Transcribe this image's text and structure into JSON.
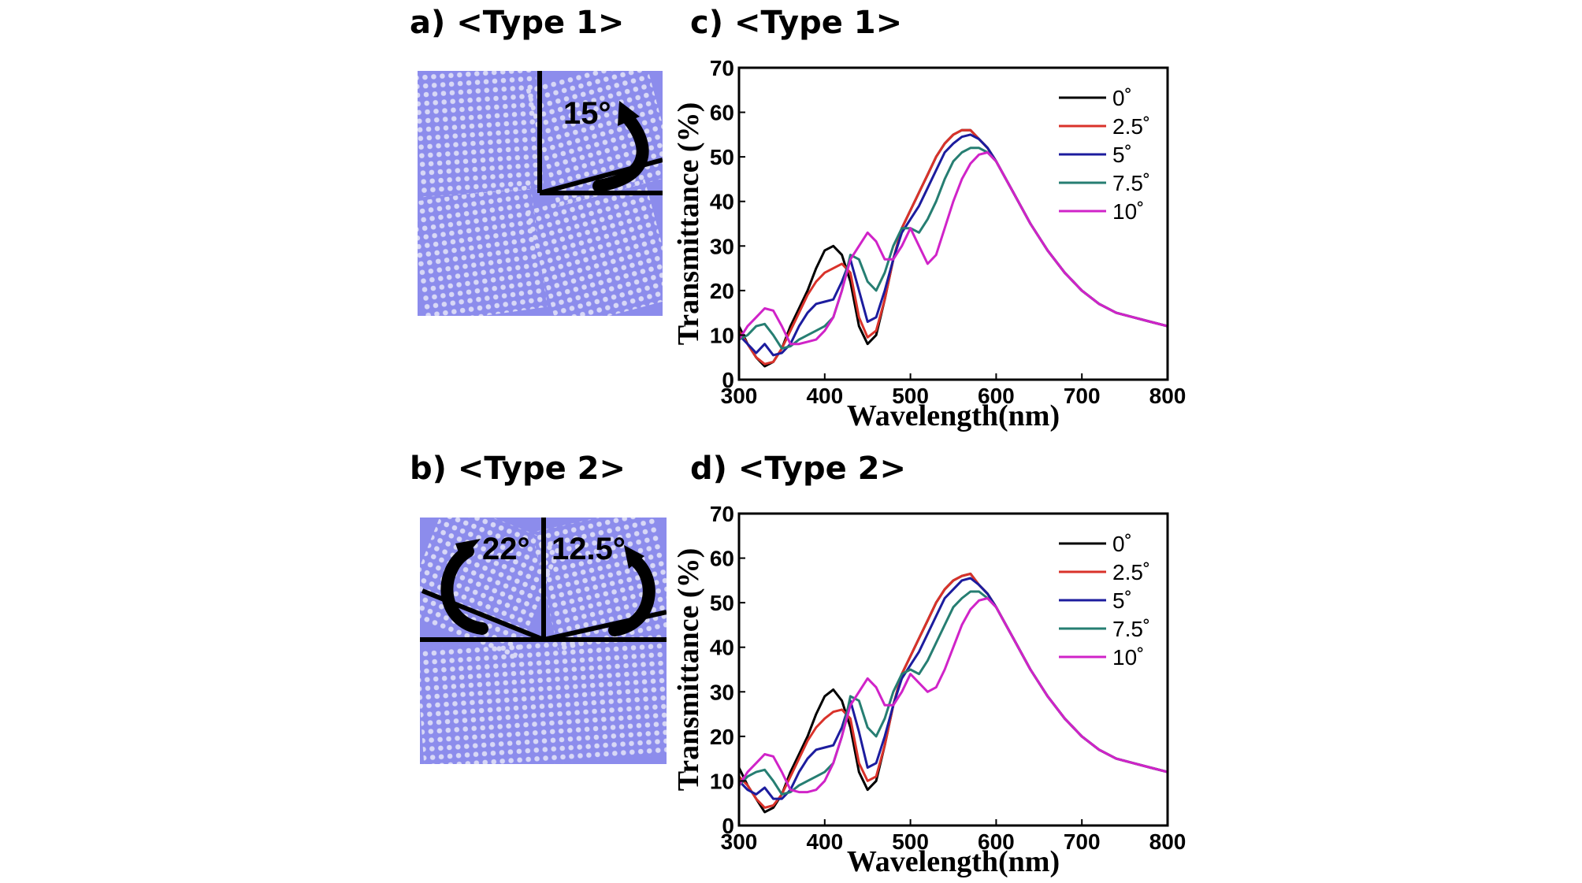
{
  "panels": [
    {
      "label": "a)",
      "title": "<Type 1>",
      "angles": [
        "15°"
      ]
    },
    {
      "label": "b)",
      "title": "<Type 2>",
      "angles": [
        "22°",
        "12.5°"
      ]
    },
    {
      "label": "c)",
      "title": "<Type 1>"
    },
    {
      "label": "d)",
      "title": "<Type 2>"
    }
  ],
  "pattern_colors": {
    "background": "#8C8CEC",
    "dots": "#D8D8F6",
    "lines": "#000000"
  },
  "chart_data": [
    {
      "type": "line",
      "panel": "c)",
      "xlabel": "Wavelength(nm)",
      "ylabel": "Transmittance (%)",
      "xlim": [
        300,
        800
      ],
      "ylim": [
        0,
        70
      ],
      "xticks": [
        300,
        400,
        500,
        600,
        700,
        800
      ],
      "yticks": [
        0,
        10,
        20,
        30,
        40,
        50,
        60,
        70
      ],
      "grid": false,
      "legend": "top-right",
      "x": [
        300,
        310,
        320,
        330,
        340,
        350,
        360,
        370,
        380,
        390,
        400,
        410,
        420,
        430,
        440,
        450,
        460,
        470,
        480,
        490,
        500,
        510,
        520,
        530,
        540,
        550,
        560,
        570,
        580,
        590,
        600,
        620,
        640,
        660,
        680,
        700,
        720,
        740,
        760,
        780,
        800
      ],
      "series": [
        {
          "name": "0˚",
          "color": "#000000",
          "values": [
            12,
            8,
            5,
            3,
            4,
            7,
            12,
            16,
            20,
            25,
            29,
            30,
            28,
            22,
            12,
            8,
            10,
            18,
            27,
            34,
            38,
            42,
            46,
            50,
            53,
            55,
            56,
            56,
            54,
            52,
            49,
            42,
            35,
            29,
            24,
            20,
            17,
            15,
            14,
            13,
            12
          ]
        },
        {
          "name": "2.5˚",
          "color": "#D9322A",
          "values": [
            11,
            8,
            5,
            3.5,
            4,
            7,
            11,
            15,
            19,
            22,
            24,
            25,
            26,
            24,
            14,
            9.5,
            11,
            18,
            27,
            34,
            38,
            42,
            46,
            50,
            53,
            55,
            56,
            56,
            54,
            52,
            49,
            42,
            35,
            29,
            24,
            20,
            17,
            15,
            14,
            13,
            12
          ]
        },
        {
          "name": "5˚",
          "color": "#1C1C9E",
          "values": [
            10,
            8,
            6,
            8,
            5.5,
            6,
            8,
            12,
            15,
            17,
            17.5,
            18,
            22,
            27,
            20,
            13,
            14,
            20,
            27,
            33,
            36,
            39,
            43,
            47,
            51,
            53,
            54.5,
            55,
            54,
            52,
            49,
            42,
            35,
            29,
            24,
            20,
            17,
            15,
            14,
            13,
            12
          ]
        },
        {
          "name": "7.5˚",
          "color": "#267E72",
          "values": [
            9,
            10,
            12,
            12.5,
            10,
            7,
            7.5,
            9,
            10,
            11,
            12,
            14,
            20,
            28,
            27,
            22,
            20,
            24,
            30,
            34,
            34,
            33,
            36,
            40,
            45,
            49,
            51,
            52,
            52,
            51,
            49,
            42,
            35,
            29,
            24,
            20,
            17,
            15,
            14,
            13,
            12
          ]
        },
        {
          "name": "10˚",
          "color": "#D023C8",
          "values": [
            9,
            12,
            14,
            16,
            15.5,
            12,
            8,
            8,
            8.5,
            9,
            11,
            14,
            20,
            27,
            30,
            33,
            31,
            27,
            27,
            30,
            34,
            30,
            26,
            28,
            34,
            40,
            45,
            48.5,
            50.5,
            51,
            49,
            42,
            35,
            29,
            24,
            20,
            17,
            15,
            14,
            13,
            12
          ]
        }
      ]
    },
    {
      "type": "line",
      "panel": "d)",
      "xlabel": "Wavelength(nm)",
      "ylabel": "Transmittance (%)",
      "xlim": [
        300,
        800
      ],
      "ylim": [
        0,
        70
      ],
      "xticks": [
        300,
        400,
        500,
        600,
        700,
        800
      ],
      "yticks": [
        0,
        10,
        20,
        30,
        40,
        50,
        60,
        70
      ],
      "grid": false,
      "legend": "top-right",
      "x": [
        300,
        310,
        320,
        330,
        340,
        350,
        360,
        370,
        380,
        390,
        400,
        410,
        420,
        430,
        440,
        450,
        460,
        470,
        480,
        490,
        500,
        510,
        520,
        530,
        540,
        550,
        560,
        570,
        580,
        590,
        600,
        620,
        640,
        660,
        680,
        700,
        720,
        740,
        760,
        780,
        800
      ],
      "series": [
        {
          "name": "0˚",
          "color": "#000000",
          "values": [
            13,
            9,
            6,
            3,
            4,
            7,
            12,
            16,
            20,
            25,
            29,
            30.5,
            28,
            22,
            12,
            8,
            10,
            18,
            27,
            34,
            38,
            42,
            46,
            50,
            53,
            55,
            56,
            56.5,
            54,
            52,
            49,
            42,
            35,
            29,
            24,
            20,
            17,
            15,
            14,
            13,
            12
          ]
        },
        {
          "name": "2.5˚",
          "color": "#D9322A",
          "values": [
            11,
            9,
            6,
            4,
            4.5,
            7,
            11,
            15,
            19,
            22,
            24,
            25.5,
            26,
            24,
            14,
            10,
            11,
            18,
            27,
            34,
            38,
            42,
            46,
            50,
            53,
            55,
            56,
            56.5,
            54,
            52,
            49,
            42,
            35,
            29,
            24,
            20,
            17,
            15,
            14,
            13,
            12
          ]
        },
        {
          "name": "5˚",
          "color": "#1C1C9E",
          "values": [
            10,
            8,
            7,
            8.5,
            6,
            6,
            8,
            12,
            15,
            17,
            17.5,
            18,
            22,
            28,
            21,
            13,
            14,
            20,
            27,
            33,
            36,
            39,
            43,
            47,
            51,
            53,
            55,
            55.5,
            54,
            52,
            49,
            42,
            35,
            29,
            24,
            20,
            17,
            15,
            14,
            13,
            12
          ]
        },
        {
          "name": "7.5˚",
          "color": "#267E72",
          "values": [
            9,
            11,
            12,
            12.5,
            10,
            7,
            7.5,
            9,
            10,
            11,
            12,
            14,
            20,
            29,
            28,
            22,
            20,
            24,
            30,
            34,
            35,
            34,
            37,
            41,
            45,
            49,
            51,
            52.5,
            52.5,
            51,
            49,
            42,
            35,
            29,
            24,
            20,
            17,
            15,
            14,
            13,
            12
          ]
        },
        {
          "name": "10˚",
          "color": "#D023C8",
          "values": [
            9,
            12,
            14,
            16,
            15.5,
            12,
            8,
            7.5,
            7.5,
            8,
            10,
            14,
            20,
            27,
            30,
            33,
            31,
            27,
            27,
            30,
            34,
            32,
            30,
            31,
            35,
            40,
            45,
            48.5,
            50.5,
            51,
            49,
            42,
            35,
            29,
            24,
            20,
            17,
            15,
            14,
            13,
            12
          ]
        }
      ]
    }
  ]
}
